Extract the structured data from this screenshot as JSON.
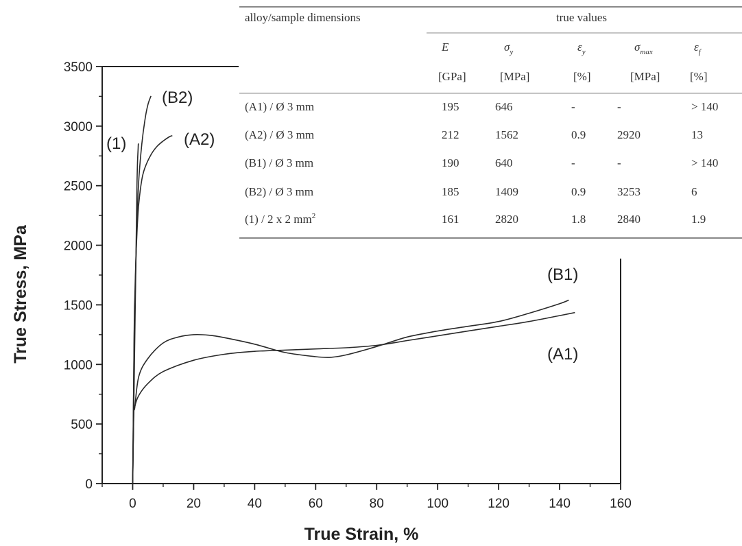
{
  "chart_data": {
    "type": "line",
    "title": "",
    "xlabel": "True Strain, %",
    "ylabel": "True Stress, MPa",
    "xlim": [
      -10,
      160
    ],
    "ylim": [
      0,
      3500
    ],
    "x_ticks": [
      0,
      20,
      40,
      60,
      80,
      100,
      120,
      140,
      160
    ],
    "y_ticks": [
      0,
      500,
      1000,
      1500,
      2000,
      2500,
      3000,
      3500
    ],
    "grid": false,
    "legend": "labels next to curves",
    "series": [
      {
        "name": "(A1)",
        "x": [
          0,
          0.3,
          0.7,
          2,
          5,
          10,
          20,
          30,
          40,
          50,
          60,
          70,
          80,
          90,
          100,
          110,
          120,
          130,
          140,
          145
        ],
        "y": [
          0,
          550,
          646,
          740,
          840,
          940,
          1035,
          1085,
          1110,
          1120,
          1130,
          1140,
          1160,
          1200,
          1240,
          1280,
          1320,
          1360,
          1410,
          1435
        ]
      },
      {
        "name": "(B1)",
        "x": [
          0,
          0.3,
          0.7,
          2,
          5,
          10,
          15,
          20,
          25,
          30,
          40,
          50,
          60,
          65,
          70,
          80,
          90,
          100,
          110,
          120,
          130,
          140,
          143
        ],
        "y": [
          0,
          560,
          640,
          900,
          1050,
          1180,
          1230,
          1250,
          1245,
          1225,
          1170,
          1100,
          1065,
          1060,
          1080,
          1150,
          1230,
          1280,
          1320,
          1360,
          1430,
          1510,
          1540
        ]
      },
      {
        "name": "(A2)",
        "x": [
          0,
          0.5,
          0.7,
          1,
          1.5,
          2,
          3,
          4,
          6,
          8,
          10,
          12,
          13
        ],
        "y": [
          0,
          1300,
          1562,
          1850,
          2150,
          2350,
          2550,
          2650,
          2760,
          2830,
          2875,
          2910,
          2920
        ]
      },
      {
        "name": "(B2)",
        "x": [
          0,
          0.5,
          0.7,
          1,
          1.5,
          2,
          3,
          4,
          5,
          6
        ],
        "y": [
          0,
          1250,
          1409,
          1800,
          2250,
          2550,
          2850,
          3050,
          3180,
          3253
        ]
      },
      {
        "name": "(1)",
        "x": [
          0,
          0.8,
          1.4,
          1.8,
          1.9
        ],
        "y": [
          0,
          1400,
          2500,
          2820,
          2840
        ]
      }
    ],
    "curve_labels": {
      "b2": "(B2)",
      "one": "(1)",
      "a2": "(A2)",
      "b1": "(B1)",
      "a1": "(A1)"
    }
  },
  "table": {
    "col_header_left": "alloy/sample dimensions",
    "col_header_group": "true values",
    "columns": [
      {
        "symbol": "E",
        "sub": "",
        "unit": "[GPa]"
      },
      {
        "symbol": "σ",
        "sub": "y",
        "unit": "[MPa]"
      },
      {
        "symbol": "ε",
        "sub": "y",
        "unit": "[%]"
      },
      {
        "symbol": "σ",
        "sub": "max",
        "unit": "[MPa]"
      },
      {
        "symbol": "ε",
        "sub": "f",
        "unit": "[%]"
      }
    ],
    "rows": [
      {
        "sample": "(A1) / Ø 3 mm",
        "sup": "",
        "values": [
          "195",
          "646",
          "-",
          "-",
          "> 140"
        ]
      },
      {
        "sample": "(A2) / Ø 3 mm",
        "sup": "",
        "values": [
          "212",
          "1562",
          "0.9",
          "2920",
          "13"
        ]
      },
      {
        "sample": "(B1) / Ø 3 mm",
        "sup": "",
        "values": [
          "190",
          "640",
          "-",
          "-",
          "> 140"
        ]
      },
      {
        "sample": "(B2) / Ø 3 mm",
        "sup": "",
        "values": [
          "185",
          "1409",
          "0.9",
          "3253",
          "6"
        ]
      },
      {
        "sample": "(1) / 2 x 2 mm",
        "sup": "2",
        "values": [
          "161",
          "2820",
          "1.8",
          "2840",
          "1.9"
        ]
      }
    ]
  },
  "colors": {
    "line": "#2a2a2a",
    "axis": "#222222",
    "table_rule": "#888888",
    "text": "#222222"
  }
}
